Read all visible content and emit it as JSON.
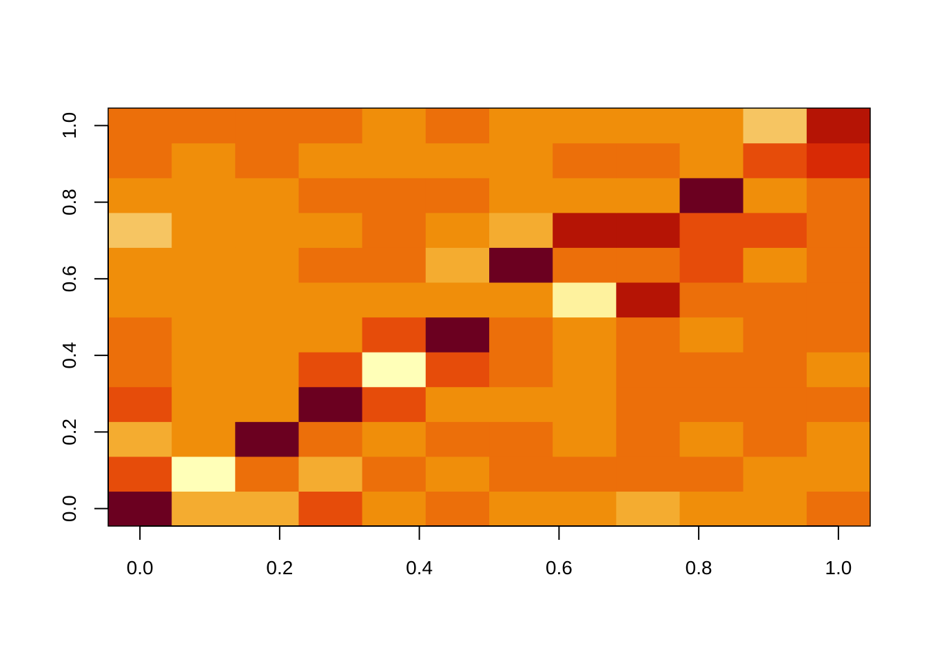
{
  "chart_data": {
    "type": "heatmap",
    "title": "",
    "xlabel": "",
    "ylabel": "",
    "xlim": [
      -0.0455,
      1.0455
    ],
    "ylim": [
      -0.0455,
      1.0455
    ],
    "x_ticks": [
      0.0,
      0.2,
      0.4,
      0.6,
      0.8,
      1.0
    ],
    "y_ticks": [
      0.0,
      0.2,
      0.4,
      0.6,
      0.8,
      1.0
    ],
    "x_tick_labels": [
      "0.0",
      "0.2",
      "0.4",
      "0.6",
      "0.8",
      "1.0"
    ],
    "y_tick_labels": [
      "0.0",
      "0.2",
      "0.4",
      "0.6",
      "0.8",
      "1.0"
    ],
    "x_centers": [
      0.0,
      0.0909,
      0.1818,
      0.2727,
      0.3636,
      0.4545,
      0.5455,
      0.6364,
      0.7273,
      0.8182,
      0.9091,
      1.0
    ],
    "y_centers": [
      0.0,
      0.0909,
      0.1818,
      0.2727,
      0.3636,
      0.4545,
      0.5455,
      0.6364,
      0.7273,
      0.8182,
      0.9091,
      1.0
    ],
    "palette": [
      "#6b0020",
      "#b51405",
      "#d82a05",
      "#e64c0a",
      "#ec6f0a",
      "#f08e0a",
      "#f4ac30",
      "#f6c562",
      "#fef29e",
      "#ffffb8"
    ],
    "grid": false,
    "legend": "none",
    "rows": [
      [
        0,
        6,
        6,
        3,
        5,
        4,
        5,
        5,
        6,
        5,
        5,
        4
      ],
      [
        3,
        9,
        4,
        6,
        4,
        5,
        4,
        4,
        4,
        4,
        5,
        5
      ],
      [
        6,
        5,
        0,
        4,
        5,
        4,
        4,
        5,
        4,
        5,
        4,
        5
      ],
      [
        3,
        5,
        5,
        0,
        3,
        5,
        5,
        5,
        4,
        4,
        4,
        4
      ],
      [
        4,
        5,
        5,
        3,
        9,
        3,
        4,
        5,
        4,
        4,
        4,
        5
      ],
      [
        4,
        5,
        5,
        5,
        3,
        0,
        4,
        5,
        4,
        5,
        4,
        4
      ],
      [
        5,
        5,
        5,
        5,
        5,
        5,
        5,
        8,
        1,
        4,
        4,
        4
      ],
      [
        5,
        5,
        5,
        4,
        4,
        6,
        0,
        4,
        4,
        3,
        5,
        4
      ],
      [
        7,
        5,
        5,
        5,
        4,
        5,
        6,
        1,
        1,
        3,
        3,
        4
      ],
      [
        5,
        5,
        5,
        4,
        4,
        4,
        5,
        5,
        5,
        0,
        5,
        4
      ],
      [
        4,
        5,
        4,
        5,
        5,
        5,
        5,
        4,
        4,
        5,
        3,
        2
      ],
      [
        4,
        4,
        4,
        4,
        5,
        4,
        5,
        5,
        5,
        5,
        7,
        1
      ]
    ]
  }
}
